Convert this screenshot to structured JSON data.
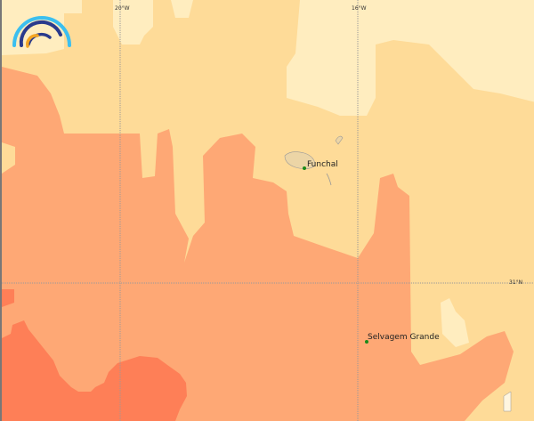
{
  "map": {
    "graticule": {
      "lon_labels": [
        "20°W",
        "16°W"
      ],
      "lat_labels": [
        "31°N"
      ]
    },
    "places": [
      {
        "name": "Funchal",
        "marker_color": "#1a8a1a"
      },
      {
        "name": "Selvagem Grande",
        "marker_color": "#1a8a1a"
      }
    ],
    "colors": {
      "lightest": "#ffedbf",
      "light": "#fedb98",
      "medium": "#fea875",
      "dark": "#fe7f57",
      "land": "#ecd5a6"
    },
    "logo": "arc-rainbow-logo"
  }
}
